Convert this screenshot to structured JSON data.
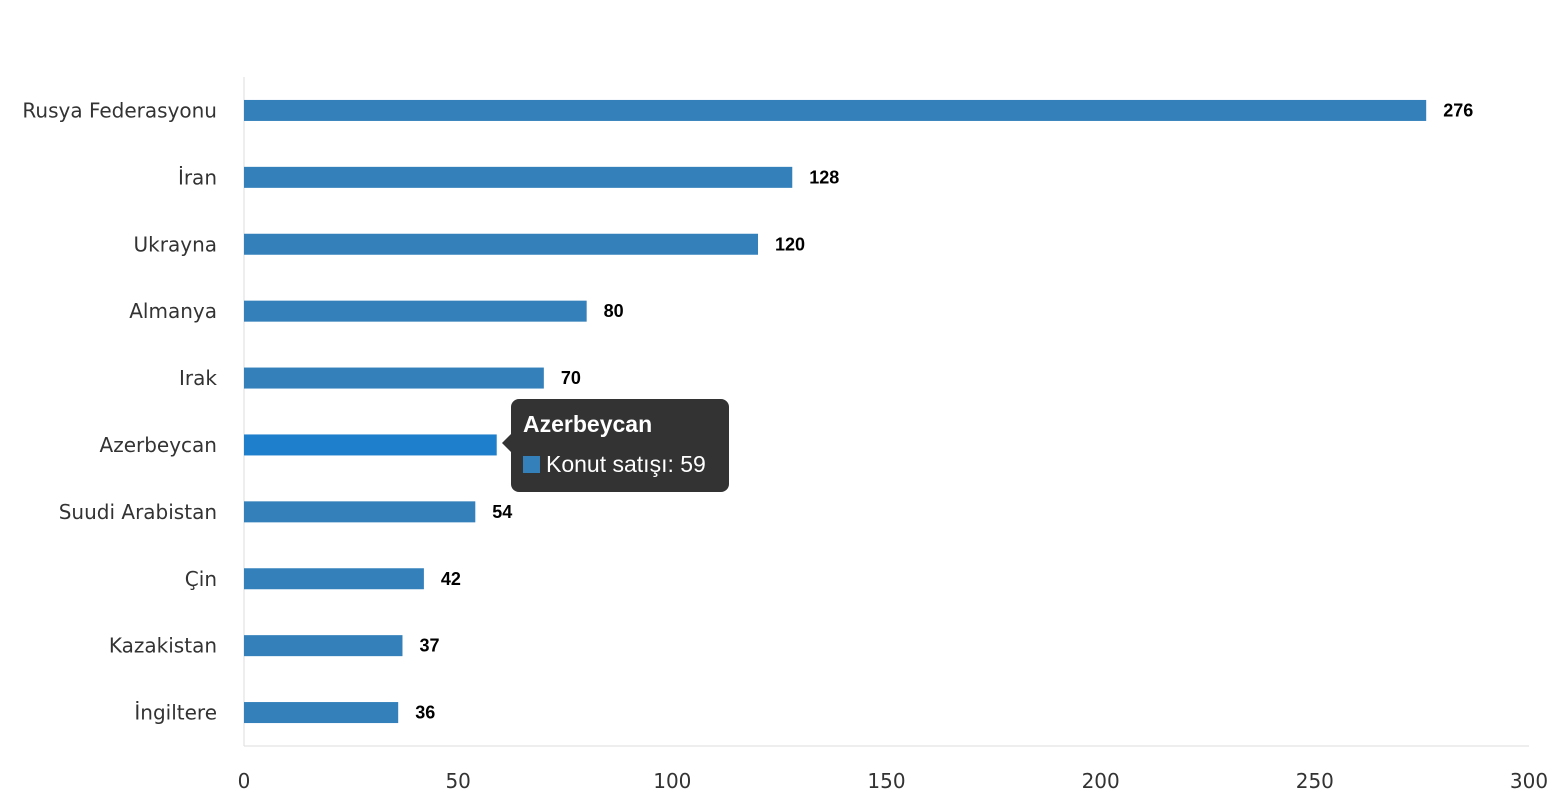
{
  "chart_data": {
    "type": "bar",
    "orientation": "horizontal",
    "categories": [
      "Rusya Federasyonu",
      "İran",
      "Ukrayna",
      "Almanya",
      "Irak",
      "Azerbeycan",
      "Suudi Arabistan",
      "Çin",
      "Kazakistan",
      "İngiltere"
    ],
    "series": [
      {
        "name": "Konut satışı",
        "values": [
          276,
          128,
          120,
          80,
          70,
          59,
          54,
          42,
          37,
          36
        ]
      }
    ],
    "xlim": [
      0,
      300
    ],
    "xticks": [
      0,
      50,
      100,
      150,
      200,
      250,
      300
    ],
    "title": "",
    "xlabel": "",
    "ylabel": "",
    "grid": false,
    "data_labels": true,
    "highlighted_index": 5,
    "colors": {
      "bar": "#3380BB",
      "bar_highlight": "#1E7FCC",
      "axis": "#dddddd"
    }
  },
  "tooltip": {
    "title": "Azerbeycan",
    "series_label": "Konut satışı",
    "value": "59",
    "text": "Konut satışı: 59",
    "swatch_color": "#3380BB"
  }
}
